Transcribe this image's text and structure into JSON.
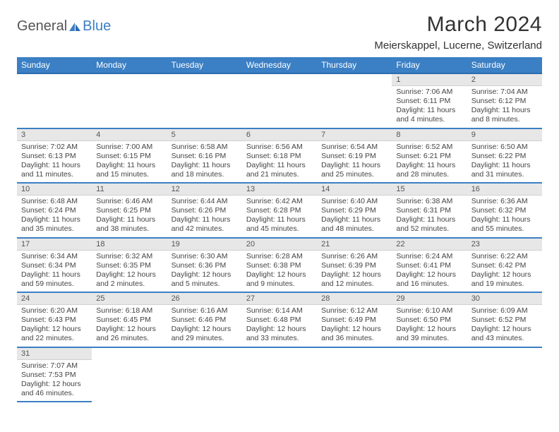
{
  "logo": {
    "text1": "General",
    "text2": "Blue"
  },
  "title": "March 2024",
  "location": "Meierskappel, Lucerne, Switzerland",
  "colors": {
    "header_bg": "#3b7fc4",
    "header_text": "#ffffff",
    "daynum_bg": "#e7e7e7",
    "border": "#3b7fc4"
  },
  "weekdays": [
    "Sunday",
    "Monday",
    "Tuesday",
    "Wednesday",
    "Thursday",
    "Friday",
    "Saturday"
  ],
  "weeks": [
    [
      null,
      null,
      null,
      null,
      null,
      {
        "n": "1",
        "sr": "Sunrise: 7:06 AM",
        "ss": "Sunset: 6:11 PM",
        "d1": "Daylight: 11 hours",
        "d2": "and 4 minutes."
      },
      {
        "n": "2",
        "sr": "Sunrise: 7:04 AM",
        "ss": "Sunset: 6:12 PM",
        "d1": "Daylight: 11 hours",
        "d2": "and 8 minutes."
      }
    ],
    [
      {
        "n": "3",
        "sr": "Sunrise: 7:02 AM",
        "ss": "Sunset: 6:13 PM",
        "d1": "Daylight: 11 hours",
        "d2": "and 11 minutes."
      },
      {
        "n": "4",
        "sr": "Sunrise: 7:00 AM",
        "ss": "Sunset: 6:15 PM",
        "d1": "Daylight: 11 hours",
        "d2": "and 15 minutes."
      },
      {
        "n": "5",
        "sr": "Sunrise: 6:58 AM",
        "ss": "Sunset: 6:16 PM",
        "d1": "Daylight: 11 hours",
        "d2": "and 18 minutes."
      },
      {
        "n": "6",
        "sr": "Sunrise: 6:56 AM",
        "ss": "Sunset: 6:18 PM",
        "d1": "Daylight: 11 hours",
        "d2": "and 21 minutes."
      },
      {
        "n": "7",
        "sr": "Sunrise: 6:54 AM",
        "ss": "Sunset: 6:19 PM",
        "d1": "Daylight: 11 hours",
        "d2": "and 25 minutes."
      },
      {
        "n": "8",
        "sr": "Sunrise: 6:52 AM",
        "ss": "Sunset: 6:21 PM",
        "d1": "Daylight: 11 hours",
        "d2": "and 28 minutes."
      },
      {
        "n": "9",
        "sr": "Sunrise: 6:50 AM",
        "ss": "Sunset: 6:22 PM",
        "d1": "Daylight: 11 hours",
        "d2": "and 31 minutes."
      }
    ],
    [
      {
        "n": "10",
        "sr": "Sunrise: 6:48 AM",
        "ss": "Sunset: 6:24 PM",
        "d1": "Daylight: 11 hours",
        "d2": "and 35 minutes."
      },
      {
        "n": "11",
        "sr": "Sunrise: 6:46 AM",
        "ss": "Sunset: 6:25 PM",
        "d1": "Daylight: 11 hours",
        "d2": "and 38 minutes."
      },
      {
        "n": "12",
        "sr": "Sunrise: 6:44 AM",
        "ss": "Sunset: 6:26 PM",
        "d1": "Daylight: 11 hours",
        "d2": "and 42 minutes."
      },
      {
        "n": "13",
        "sr": "Sunrise: 6:42 AM",
        "ss": "Sunset: 6:28 PM",
        "d1": "Daylight: 11 hours",
        "d2": "and 45 minutes."
      },
      {
        "n": "14",
        "sr": "Sunrise: 6:40 AM",
        "ss": "Sunset: 6:29 PM",
        "d1": "Daylight: 11 hours",
        "d2": "and 48 minutes."
      },
      {
        "n": "15",
        "sr": "Sunrise: 6:38 AM",
        "ss": "Sunset: 6:31 PM",
        "d1": "Daylight: 11 hours",
        "d2": "and 52 minutes."
      },
      {
        "n": "16",
        "sr": "Sunrise: 6:36 AM",
        "ss": "Sunset: 6:32 PM",
        "d1": "Daylight: 11 hours",
        "d2": "and 55 minutes."
      }
    ],
    [
      {
        "n": "17",
        "sr": "Sunrise: 6:34 AM",
        "ss": "Sunset: 6:34 PM",
        "d1": "Daylight: 11 hours",
        "d2": "and 59 minutes."
      },
      {
        "n": "18",
        "sr": "Sunrise: 6:32 AM",
        "ss": "Sunset: 6:35 PM",
        "d1": "Daylight: 12 hours",
        "d2": "and 2 minutes."
      },
      {
        "n": "19",
        "sr": "Sunrise: 6:30 AM",
        "ss": "Sunset: 6:36 PM",
        "d1": "Daylight: 12 hours",
        "d2": "and 5 minutes."
      },
      {
        "n": "20",
        "sr": "Sunrise: 6:28 AM",
        "ss": "Sunset: 6:38 PM",
        "d1": "Daylight: 12 hours",
        "d2": "and 9 minutes."
      },
      {
        "n": "21",
        "sr": "Sunrise: 6:26 AM",
        "ss": "Sunset: 6:39 PM",
        "d1": "Daylight: 12 hours",
        "d2": "and 12 minutes."
      },
      {
        "n": "22",
        "sr": "Sunrise: 6:24 AM",
        "ss": "Sunset: 6:41 PM",
        "d1": "Daylight: 12 hours",
        "d2": "and 16 minutes."
      },
      {
        "n": "23",
        "sr": "Sunrise: 6:22 AM",
        "ss": "Sunset: 6:42 PM",
        "d1": "Daylight: 12 hours",
        "d2": "and 19 minutes."
      }
    ],
    [
      {
        "n": "24",
        "sr": "Sunrise: 6:20 AM",
        "ss": "Sunset: 6:43 PM",
        "d1": "Daylight: 12 hours",
        "d2": "and 22 minutes."
      },
      {
        "n": "25",
        "sr": "Sunrise: 6:18 AM",
        "ss": "Sunset: 6:45 PM",
        "d1": "Daylight: 12 hours",
        "d2": "and 26 minutes."
      },
      {
        "n": "26",
        "sr": "Sunrise: 6:16 AM",
        "ss": "Sunset: 6:46 PM",
        "d1": "Daylight: 12 hours",
        "d2": "and 29 minutes."
      },
      {
        "n": "27",
        "sr": "Sunrise: 6:14 AM",
        "ss": "Sunset: 6:48 PM",
        "d1": "Daylight: 12 hours",
        "d2": "and 33 minutes."
      },
      {
        "n": "28",
        "sr": "Sunrise: 6:12 AM",
        "ss": "Sunset: 6:49 PM",
        "d1": "Daylight: 12 hours",
        "d2": "and 36 minutes."
      },
      {
        "n": "29",
        "sr": "Sunrise: 6:10 AM",
        "ss": "Sunset: 6:50 PM",
        "d1": "Daylight: 12 hours",
        "d2": "and 39 minutes."
      },
      {
        "n": "30",
        "sr": "Sunrise: 6:09 AM",
        "ss": "Sunset: 6:52 PM",
        "d1": "Daylight: 12 hours",
        "d2": "and 43 minutes."
      }
    ],
    [
      {
        "n": "31",
        "sr": "Sunrise: 7:07 AM",
        "ss": "Sunset: 7:53 PM",
        "d1": "Daylight: 12 hours",
        "d2": "and 46 minutes."
      },
      null,
      null,
      null,
      null,
      null,
      null
    ]
  ]
}
